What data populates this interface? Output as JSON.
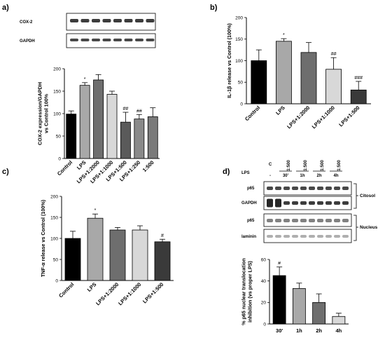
{
  "panels": {
    "a": "a)",
    "b": "b)",
    "c": "c)",
    "d": "d)"
  },
  "blots_a": {
    "labels": [
      "COX-2",
      "GAPDH"
    ]
  },
  "blots_d": {
    "lps_label": "LPS",
    "col_top": [
      "C",
      "1:500",
      "1:500",
      "1:500",
      "1:500"
    ],
    "col_bottom": [
      "-",
      "30'",
      "1h",
      "2h",
      "4h"
    ],
    "labels": [
      "p65",
      "GAPDH",
      "p65",
      "laminin"
    ],
    "compartments": [
      "Citosol",
      "Nucleus"
    ]
  },
  "chart_data": [
    {
      "id": "a",
      "type": "bar",
      "ylabel": "COX-2 expression/GAPDH\nvs Control 100%",
      "ylim": [
        0,
        200
      ],
      "yticks": [
        0,
        50,
        100,
        150,
        200
      ],
      "categories": [
        "Control",
        "LPS",
        "LPS+1:2000",
        "LPS+1:1000",
        "LPS+1:500",
        "LPS+1:250",
        "1:500"
      ],
      "values": [
        99,
        163,
        175,
        143,
        81,
        88,
        93
      ],
      "errors": [
        7,
        6,
        12,
        7,
        22,
        10,
        20
      ],
      "colors": [
        "#000000",
        "#a8a8a8",
        "#6e6e6e",
        "#d8d8d8",
        "#5a5a5a",
        "#8a8a8a",
        "#7a7a7a"
      ],
      "annotations": [
        "",
        "*",
        "",
        "",
        "##",
        "##",
        ""
      ]
    },
    {
      "id": "b",
      "type": "bar",
      "ylabel": "IL-1β release vs Control (100%)",
      "ylim": [
        0,
        200
      ],
      "yticks": [
        0,
        50,
        100,
        150,
        200
      ],
      "categories": [
        "Control",
        "LPS",
        "LPS+1:2000",
        "LPS+1:1000",
        "LPS+1:500"
      ],
      "values": [
        100,
        145,
        119,
        80,
        32
      ],
      "errors": [
        25,
        6,
        23,
        27,
        20
      ],
      "colors": [
        "#000000",
        "#a8a8a8",
        "#6e6e6e",
        "#d8d8d8",
        "#3a3a3a"
      ],
      "annotations": [
        "",
        "*",
        "",
        "##",
        "###"
      ]
    },
    {
      "id": "c",
      "type": "bar",
      "ylabel": "TNF-α release vs Control (100%)",
      "ylim": [
        0,
        200
      ],
      "yticks": [
        0,
        50,
        100,
        150,
        200
      ],
      "categories": [
        "Control",
        "LPS",
        "LPS+1:2000",
        "LPS+1:1000",
        "LPS+1:500"
      ],
      "values": [
        100,
        148,
        120,
        120,
        92
      ],
      "errors": [
        17,
        10,
        6,
        10,
        6
      ],
      "colors": [
        "#000000",
        "#a8a8a8",
        "#6e6e6e",
        "#d8d8d8",
        "#3a3a3a"
      ],
      "annotations": [
        "",
        "*",
        "",
        "",
        "#"
      ]
    },
    {
      "id": "d",
      "type": "bar",
      "ylabel": "% p65 nuclear translocation\ninhibition (vs proper LPS)",
      "ylim": [
        0,
        60
      ],
      "yticks": [
        0,
        20,
        40,
        60
      ],
      "categories": [
        "30'",
        "1h",
        "2h",
        "4h"
      ],
      "values": [
        45,
        33,
        20,
        7
      ],
      "errors": [
        8,
        5,
        8,
        3
      ],
      "colors": [
        "#000000",
        "#a8a8a8",
        "#6e6e6e",
        "#d8d8d8"
      ],
      "annotations": [
        "#",
        "",
        "",
        ""
      ]
    }
  ]
}
